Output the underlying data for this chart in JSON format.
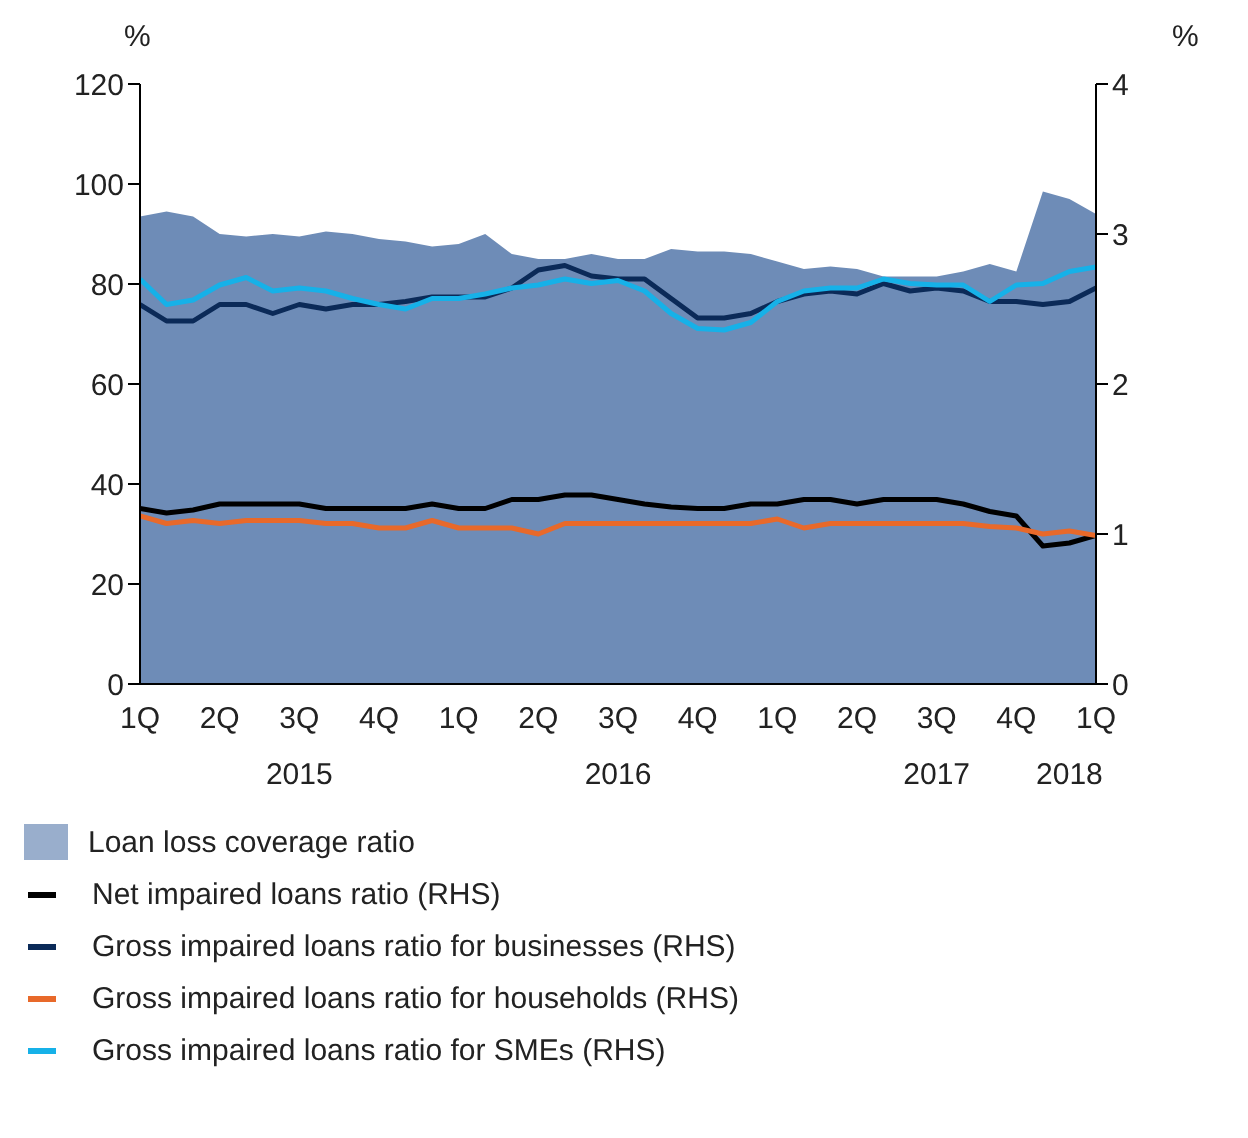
{
  "chart_data": {
    "type": "line",
    "ylabel": "%",
    "y2label": "%",
    "categories": [
      "1Q",
      null,
      null,
      "2Q",
      null,
      null,
      "3Q",
      null,
      null,
      "4Q",
      null,
      null,
      "1Q",
      null,
      null,
      "2Q",
      null,
      null,
      "3Q",
      null,
      null,
      "4Q",
      null,
      null,
      "1Q",
      null,
      null,
      "2Q",
      null,
      null,
      "3Q",
      null,
      null,
      "4Q",
      null,
      null,
      "1Q"
    ],
    "annotations": [
      "2015",
      "2016",
      "2017",
      "2018"
    ],
    "series": [
      {
        "name": "Loan loss coverage ratio",
        "type": "area",
        "color": "#6e8cb7",
        "values": [
          93.5,
          94.5,
          93.5,
          90,
          89.5,
          90,
          89.5,
          90.5,
          90,
          89,
          88.5,
          87.5,
          88,
          90,
          86,
          85,
          85,
          86,
          85,
          85,
          87,
          86.5,
          86.5,
          86,
          84.5,
          83,
          83.5,
          83,
          81.5,
          81.5,
          81.5,
          82.5,
          84,
          82.5,
          98.5,
          97,
          94
        ]
      },
      {
        "name": "Net impaired loans ratio (RHS)",
        "axis": "y2",
        "color": "#000000",
        "values": [
          1.17,
          1.14,
          1.16,
          1.2,
          1.2,
          1.2,
          1.2,
          1.17,
          1.17,
          1.17,
          1.17,
          1.2,
          1.17,
          1.17,
          1.23,
          1.23,
          1.26,
          1.26,
          1.23,
          1.2,
          1.18,
          1.17,
          1.17,
          1.2,
          1.2,
          1.23,
          1.23,
          1.2,
          1.23,
          1.23,
          1.23,
          1.2,
          1.15,
          1.12,
          0.92,
          0.94,
          0.99
        ]
      },
      {
        "name": "Gross impaired loans ratio for businesses (RHS)",
        "axis": "y2",
        "color": "#0b2a58",
        "values": [
          2.53,
          2.42,
          2.42,
          2.53,
          2.53,
          2.47,
          2.53,
          2.5,
          2.53,
          2.53,
          2.55,
          2.58,
          2.58,
          2.58,
          2.64,
          2.76,
          2.79,
          2.72,
          2.7,
          2.7,
          2.57,
          2.44,
          2.44,
          2.47,
          2.55,
          2.6,
          2.62,
          2.6,
          2.67,
          2.62,
          2.64,
          2.62,
          2.55,
          2.55,
          2.53,
          2.55,
          2.64
        ]
      },
      {
        "name": "Gross impaired loans ratio for households (RHS)",
        "axis": "y2",
        "color": "#e8692a",
        "values": [
          1.12,
          1.07,
          1.09,
          1.07,
          1.09,
          1.09,
          1.09,
          1.07,
          1.07,
          1.04,
          1.04,
          1.09,
          1.04,
          1.04,
          1.04,
          1.0,
          1.07,
          1.07,
          1.07,
          1.07,
          1.07,
          1.07,
          1.07,
          1.07,
          1.1,
          1.04,
          1.07,
          1.07,
          1.07,
          1.07,
          1.07,
          1.07,
          1.05,
          1.04,
          1.0,
          1.02,
          0.99
        ]
      },
      {
        "name": "Gross impaired loans ratio for SMEs (RHS)",
        "axis": "y2",
        "color": "#16b1e8",
        "values": [
          2.7,
          2.53,
          2.56,
          2.66,
          2.71,
          2.62,
          2.64,
          2.62,
          2.57,
          2.53,
          2.5,
          2.57,
          2.57,
          2.6,
          2.64,
          2.66,
          2.7,
          2.67,
          2.69,
          2.62,
          2.47,
          2.37,
          2.36,
          2.41,
          2.55,
          2.62,
          2.64,
          2.64,
          2.7,
          2.67,
          2.66,
          2.66,
          2.55,
          2.66,
          2.67,
          2.75,
          2.78
        ]
      }
    ],
    "ylim": [
      0,
      120
    ],
    "yticks": [
      0,
      20,
      40,
      60,
      80,
      100,
      120
    ],
    "y2lim": [
      0,
      4
    ],
    "y2ticks": [
      0,
      1,
      2,
      3,
      4
    ],
    "grid": false,
    "legend": "bottom",
    "marker": "none",
    "line_style": "solid"
  }
}
